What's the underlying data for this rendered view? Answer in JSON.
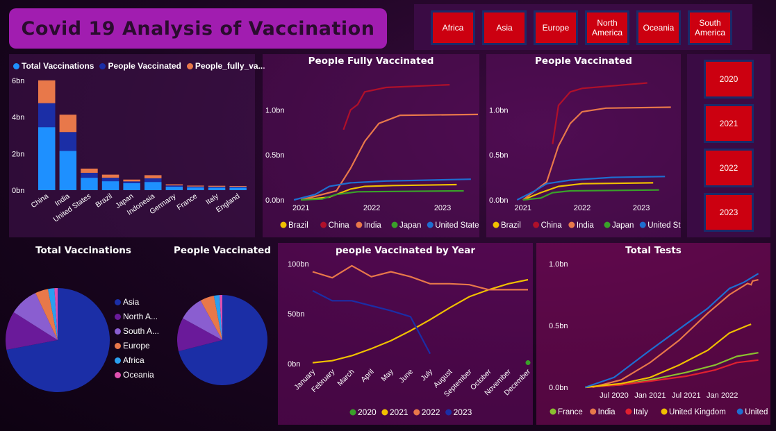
{
  "header": {
    "title": "Covid 19 Analysis of Vaccination"
  },
  "continent_filter": [
    "Africa",
    "Asia",
    "Europe",
    "North America",
    "Oceania",
    "South America"
  ],
  "year_filter": [
    "2020",
    "2021",
    "2022",
    "2023"
  ],
  "colors": {
    "blue_light": "#1e90ff",
    "blue_dark": "#1b2ea6",
    "orange": "#e8784a",
    "yellow": "#f0c000",
    "crimson": "#b0102a",
    "green": "#3aa02a",
    "steel": "#1e6ed0",
    "purple": "#6a1a9a",
    "lavender": "#8a5ed0",
    "sky": "#2aa0f0",
    "pink": "#e050b0",
    "lime": "#8ac030",
    "red": "#e02030"
  },
  "chart_data": [
    {
      "id": "stacked",
      "type": "bar",
      "title": "",
      "legend": [
        "Total Vaccinations",
        "People Vaccinated",
        "People_fully_va..."
      ],
      "categories": [
        "China",
        "India",
        "United States",
        "Brazil",
        "Japan",
        "Indonesia",
        "Germany",
        "France",
        "Italy",
        "England"
      ],
      "series": [
        {
          "name": "Total Vaccinations",
          "values": [
            3.45,
            2.15,
            0.68,
            0.49,
            0.38,
            0.45,
            0.19,
            0.15,
            0.14,
            0.14
          ]
        },
        {
          "name": "People Vaccinated",
          "values": [
            1.31,
            1.03,
            0.27,
            0.19,
            0.1,
            0.2,
            0.07,
            0.05,
            0.05,
            0.05
          ]
        },
        {
          "name": "People_fully_va...",
          "values": [
            1.25,
            0.95,
            0.23,
            0.17,
            0.1,
            0.17,
            0.06,
            0.05,
            0.05,
            0.04
          ]
        }
      ],
      "yticks": [
        "0bn",
        "2bn",
        "4bn",
        "6bn"
      ],
      "ylim": [
        0,
        6
      ]
    },
    {
      "id": "fully",
      "type": "line",
      "title": "People Fully Vaccinated",
      "xticks": [
        "2021",
        "2022",
        "2023"
      ],
      "yticks": [
        "0.0bn",
        "0.5bn",
        "1.0bn"
      ],
      "ylim": [
        0,
        1.35
      ],
      "series": [
        {
          "name": "Brazil",
          "color": "yellow",
          "points": [
            [
              2021.0,
              0
            ],
            [
              2021.4,
              0.03
            ],
            [
              2021.7,
              0.12
            ],
            [
              2021.9,
              0.15
            ],
            [
              2022.3,
              0.16
            ],
            [
              2023.2,
              0.17
            ]
          ]
        },
        {
          "name": "China",
          "color": "crimson",
          "points": [
            [
              2021.6,
              0.78
            ],
            [
              2021.7,
              1.0
            ],
            [
              2021.8,
              1.06
            ],
            [
              2021.9,
              1.2
            ],
            [
              2022.2,
              1.25
            ],
            [
              2023.1,
              1.28
            ]
          ]
        },
        {
          "name": "India",
          "color": "orange",
          "points": [
            [
              2021.0,
              0
            ],
            [
              2021.5,
              0.1
            ],
            [
              2021.7,
              0.35
            ],
            [
              2021.9,
              0.65
            ],
            [
              2022.1,
              0.85
            ],
            [
              2022.4,
              0.94
            ],
            [
              2023.5,
              0.95
            ]
          ]
        },
        {
          "name": "Japan",
          "color": "green",
          "points": [
            [
              2021.0,
              0
            ],
            [
              2021.3,
              0.01
            ],
            [
              2021.5,
              0.06
            ],
            [
              2021.8,
              0.09
            ],
            [
              2023.3,
              0.1
            ]
          ]
        },
        {
          "name": "United States",
          "color": "steel",
          "points": [
            [
              2020.9,
              0
            ],
            [
              2021.2,
              0.06
            ],
            [
              2021.4,
              0.15
            ],
            [
              2021.7,
              0.19
            ],
            [
              2022.2,
              0.21
            ],
            [
              2023.4,
              0.23
            ]
          ]
        }
      ]
    },
    {
      "id": "vacc",
      "type": "line",
      "title": "People Vaccinated",
      "xticks": [
        "2021",
        "2022",
        "2023"
      ],
      "yticks": [
        "0.0bn",
        "0.5bn",
        "1.0bn"
      ],
      "ylim": [
        0,
        1.35
      ],
      "series": [
        {
          "name": "Brazil",
          "color": "yellow",
          "points": [
            [
              2021.0,
              0
            ],
            [
              2021.3,
              0.08
            ],
            [
              2021.6,
              0.15
            ],
            [
              2022.0,
              0.18
            ],
            [
              2023.2,
              0.19
            ]
          ]
        },
        {
          "name": "China",
          "color": "crimson",
          "points": [
            [
              2021.5,
              0.62
            ],
            [
              2021.6,
              1.05
            ],
            [
              2021.8,
              1.2
            ],
            [
              2022.0,
              1.24
            ],
            [
              2023.1,
              1.3
            ]
          ]
        },
        {
          "name": "India",
          "color": "orange",
          "points": [
            [
              2021.0,
              0
            ],
            [
              2021.4,
              0.2
            ],
            [
              2021.6,
              0.6
            ],
            [
              2021.8,
              0.85
            ],
            [
              2022.0,
              0.98
            ],
            [
              2022.4,
              1.02
            ],
            [
              2023.5,
              1.03
            ]
          ]
        },
        {
          "name": "Japan",
          "color": "green",
          "points": [
            [
              2021.0,
              0
            ],
            [
              2021.3,
              0.02
            ],
            [
              2021.5,
              0.08
            ],
            [
              2021.8,
              0.1
            ],
            [
              2023.3,
              0.11
            ]
          ]
        },
        {
          "name": "United States",
          "color": "steel",
          "points": [
            [
              2020.9,
              0
            ],
            [
              2021.2,
              0.1
            ],
            [
              2021.4,
              0.18
            ],
            [
              2021.8,
              0.22
            ],
            [
              2022.5,
              0.25
            ],
            [
              2023.4,
              0.26
            ]
          ]
        }
      ]
    },
    {
      "id": "pie_total",
      "type": "pie",
      "title": "Total Vaccinations",
      "slices": [
        {
          "label": "Asia",
          "value": 72.0,
          "color": "blue_dark"
        },
        {
          "label": "North A...",
          "value": 12.0,
          "color": "purple"
        },
        {
          "label": "South A...",
          "value": 9.0,
          "color": "lavender"
        },
        {
          "label": "Europe",
          "value": 4.0,
          "color": "orange"
        },
        {
          "label": "Africa",
          "value": 2.0,
          "color": "sky"
        },
        {
          "label": "Oceania",
          "value": 1.0,
          "color": "pink"
        }
      ]
    },
    {
      "id": "pie_people",
      "type": "pie",
      "title": "People Vaccinated",
      "slices": [
        {
          "label": "Asia",
          "value": 71.0,
          "color": "blue_dark"
        },
        {
          "label": "North A...",
          "value": 12.0,
          "color": "purple"
        },
        {
          "label": "South A...",
          "value": 9.0,
          "color": "lavender"
        },
        {
          "label": "Europe",
          "value": 5.0,
          "color": "orange"
        },
        {
          "label": "Africa",
          "value": 2.0,
          "color": "sky"
        },
        {
          "label": "Oceania",
          "value": 1.0,
          "color": "pink"
        }
      ]
    },
    {
      "id": "byyear",
      "type": "line",
      "title": "people Vaccinated by Year",
      "categories": [
        "January",
        "February",
        "March",
        "April",
        "May",
        "June",
        "July",
        "August",
        "September",
        "October",
        "November",
        "December"
      ],
      "yticks": [
        "0bn",
        "50bn",
        "100bn"
      ],
      "ylim": [
        0,
        100
      ],
      "series": [
        {
          "name": "2020",
          "color": "green",
          "values": [
            null,
            null,
            null,
            null,
            null,
            null,
            null,
            null,
            null,
            null,
            null,
            1
          ]
        },
        {
          "name": "2021",
          "color": "yellow",
          "values": [
            1,
            3,
            8,
            15,
            23,
            33,
            44,
            56,
            67,
            74,
            80,
            84
          ]
        },
        {
          "name": "2022",
          "color": "orange",
          "values": [
            92,
            86,
            98,
            87,
            92,
            87,
            80,
            80,
            79,
            74,
            74,
            74
          ]
        },
        {
          "name": "2023",
          "color": "blue_dark",
          "values": [
            73,
            63,
            63,
            58,
            53,
            47,
            10,
            null,
            null,
            null,
            null,
            null
          ]
        }
      ]
    },
    {
      "id": "tests",
      "type": "line",
      "title": "Total Tests",
      "xticks": [
        "Jul 2020",
        "Jan 2021",
        "Jul 2021",
        "Jan 2022"
      ],
      "yticks": [
        "0.0bn",
        "0.5bn",
        "1.0bn"
      ],
      "ylim": [
        0,
        1.0
      ],
      "series": [
        {
          "name": "France",
          "color": "lime",
          "points": [
            [
              2020.1,
              0
            ],
            [
              2020.6,
              0.02
            ],
            [
              2021.0,
              0.06
            ],
            [
              2021.5,
              0.12
            ],
            [
              2021.9,
              0.18
            ],
            [
              2022.2,
              0.25
            ],
            [
              2022.5,
              0.28
            ]
          ]
        },
        {
          "name": "India",
          "color": "orange",
          "points": [
            [
              2020.2,
              0
            ],
            [
              2020.6,
              0.06
            ],
            [
              2021.0,
              0.2
            ],
            [
              2021.4,
              0.38
            ],
            [
              2021.8,
              0.6
            ],
            [
              2022.1,
              0.75
            ],
            [
              2022.35,
              0.84
            ],
            [
              2022.4,
              0.83
            ],
            [
              2022.42,
              0.86
            ],
            [
              2022.5,
              0.87
            ]
          ]
        },
        {
          "name": "Italy",
          "color": "red",
          "points": [
            [
              2020.1,
              0
            ],
            [
              2020.6,
              0.02
            ],
            [
              2021.0,
              0.05
            ],
            [
              2021.5,
              0.09
            ],
            [
              2021.9,
              0.14
            ],
            [
              2022.2,
              0.2
            ],
            [
              2022.5,
              0.22
            ]
          ]
        },
        {
          "name": "United Kingdom",
          "color": "yellow",
          "points": [
            [
              2020.1,
              0
            ],
            [
              2020.6,
              0.03
            ],
            [
              2021.0,
              0.08
            ],
            [
              2021.4,
              0.18
            ],
            [
              2021.8,
              0.3
            ],
            [
              2022.1,
              0.44
            ],
            [
              2022.35,
              0.5
            ],
            [
              2022.4,
              0.51
            ]
          ]
        },
        {
          "name": "United States",
          "color": "steel",
          "points": [
            [
              2020.1,
              0
            ],
            [
              2020.5,
              0.08
            ],
            [
              2021.0,
              0.3
            ],
            [
              2021.4,
              0.47
            ],
            [
              2021.8,
              0.64
            ],
            [
              2022.1,
              0.8
            ],
            [
              2022.3,
              0.85
            ],
            [
              2022.5,
              0.92
            ]
          ]
        }
      ]
    }
  ]
}
